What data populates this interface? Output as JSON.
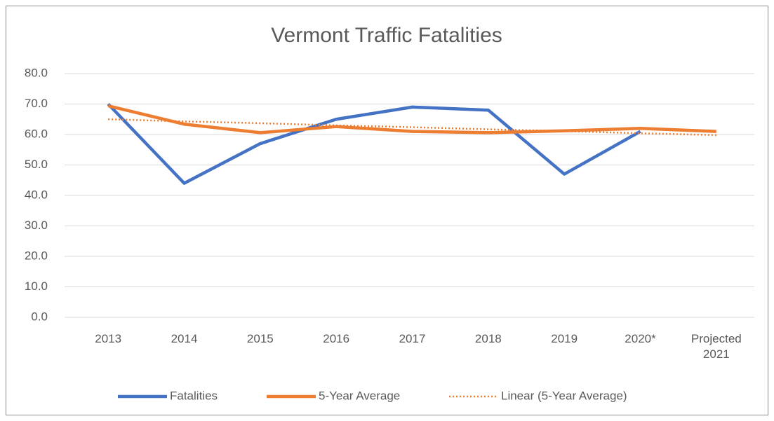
{
  "chart_data": {
    "type": "line",
    "title": "Vermont Traffic Fatalities",
    "categories": [
      "2013",
      "2014",
      "2015",
      "2016",
      "2017",
      "2018",
      "2019",
      "2020*",
      "Projected 2021"
    ],
    "series": [
      {
        "name": "Fatalities",
        "color": "#4472c4",
        "dash": "solid",
        "values": [
          70,
          44,
          57,
          65,
          69,
          68,
          47,
          61,
          null
        ]
      },
      {
        "name": "5-Year Average",
        "color": "#ed7d31",
        "dash": "solid",
        "values": [
          69.4,
          63.4,
          60.6,
          62.6,
          61,
          60.6,
          61.2,
          62,
          61
        ]
      },
      {
        "name": "Linear (5-Year Average)",
        "color": "#ed7d31",
        "dash": "dotted",
        "values": [
          65.0,
          64.3,
          63.7,
          63.0,
          62.4,
          61.7,
          61.1,
          60.4,
          59.8
        ]
      }
    ],
    "ylim": [
      0,
      80
    ],
    "yticks": [
      {
        "value": 0,
        "label": "0.0"
      },
      {
        "value": 10,
        "label": "10.0"
      },
      {
        "value": 20,
        "label": "20.0"
      },
      {
        "value": 30,
        "label": "30.0"
      },
      {
        "value": 40,
        "label": "40.0"
      },
      {
        "value": 50,
        "label": "50.0"
      },
      {
        "value": 60,
        "label": "60.0"
      },
      {
        "value": 70,
        "label": "70.0"
      },
      {
        "value": 80,
        "label": "80.0"
      }
    ],
    "grid": true,
    "legend": "bottom"
  }
}
